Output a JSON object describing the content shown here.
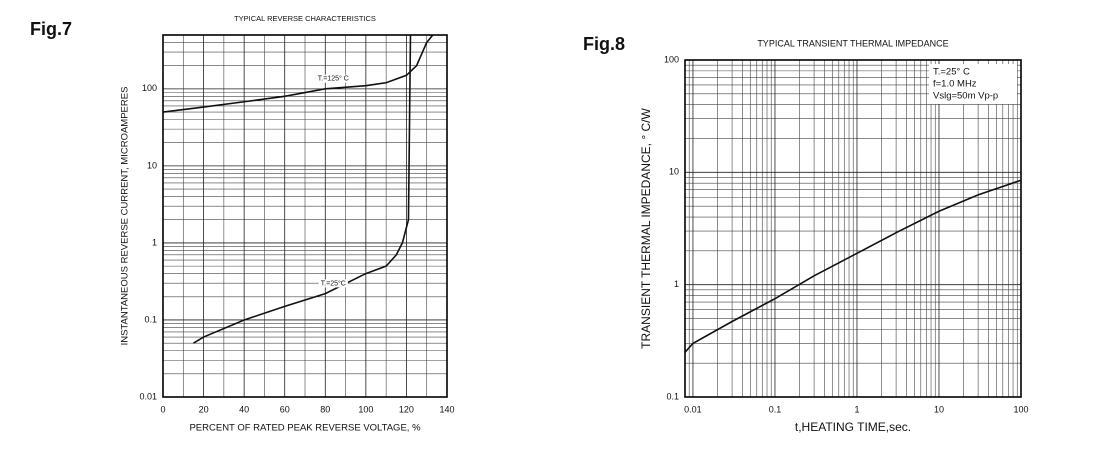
{
  "chart_data": [
    {
      "type": "line",
      "figure_label": "Fig.7",
      "title": "TYPICAL REVERSE CHARACTERISTICS",
      "x_label": "PERCENT OF RATED PEAK REVERSE VOLTAGE, %",
      "y_label": "INSTANTANEOUS REVERSE CURRENT, MICROAMPERES",
      "xlim": [
        0,
        140
      ],
      "xticks": [
        0,
        20,
        40,
        60,
        80,
        100,
        120,
        140
      ],
      "ylim": [
        0.01,
        500
      ],
      "yticks": [
        0.01,
        0.1,
        1,
        10,
        100
      ],
      "y_log": true,
      "grid": true,
      "color": "#111111",
      "series": [
        {
          "name": "T.=125° C",
          "x": [
            0,
            20,
            40,
            60,
            80,
            100,
            110,
            120,
            125,
            130,
            133
          ],
          "values": [
            50,
            58,
            68,
            80,
            100,
            110,
            120,
            150,
            200,
            400,
            500
          ]
        },
        {
          "name": "T.=25°C",
          "x": [
            15,
            20,
            40,
            60,
            80,
            100,
            110,
            115,
            118,
            121,
            122
          ],
          "values": [
            0.05,
            0.06,
            0.1,
            0.15,
            0.22,
            0.4,
            0.5,
            0.7,
            1.0,
            2,
            500
          ]
        }
      ]
    },
    {
      "type": "line",
      "figure_label": "Fig.8",
      "title": "TYPICAL TRANSIENT THERMAL IMPEDANCE",
      "x_label": "t,HEATING TIME,sec.",
      "y_label": "TRANSIENT THERMAL IMPEDANCE, ° C/W",
      "annotation": [
        "T.=25° C",
        "f=1.0 MHz",
        "Vslg=50m Vp-p"
      ],
      "xlim": [
        0.008,
        100
      ],
      "xticks": [
        0.01,
        0.1,
        1,
        10,
        100
      ],
      "x_log": true,
      "ylim": [
        0.1,
        100
      ],
      "yticks": [
        0.1,
        1,
        10,
        100
      ],
      "y_log": true,
      "grid": true,
      "color": "#111111",
      "series": [
        {
          "x": [
            0.008,
            0.01,
            0.03,
            0.1,
            0.3,
            1,
            3,
            10,
            30,
            100
          ],
          "values": [
            0.25,
            0.3,
            0.47,
            0.75,
            1.2,
            1.9,
            2.9,
            4.5,
            6.3,
            8.5
          ]
        }
      ]
    }
  ]
}
